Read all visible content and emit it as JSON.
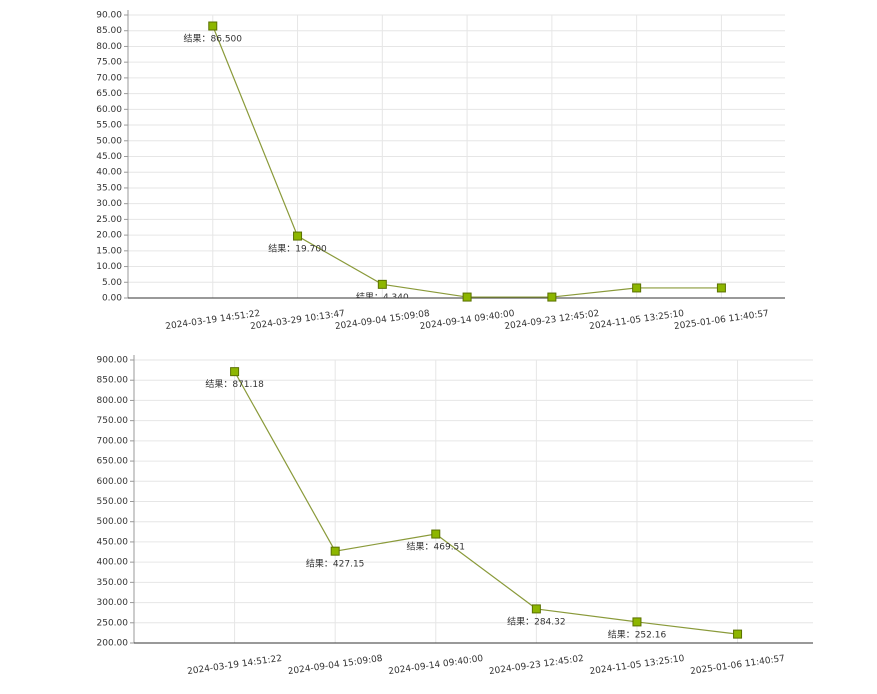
{
  "chart_data": [
    {
      "type": "line",
      "categories": [
        "2024-03-19 14:51:22",
        "2024-03-29 10:13:47",
        "2024-09-04 15:09:08",
        "2024-09-14 09:40:00",
        "2024-09-23 12:45:02",
        "2024-11-05 13:25:10",
        "2025-01-06 11:40:57"
      ],
      "series": [
        {
          "color": "#8a9a3a",
          "marker_color": "#8db600",
          "values": [
            86.5,
            19.7,
            4.34,
            0.3,
            0.3,
            3.2,
            3.2
          ],
          "value_labels": [
            "结果：86.500",
            "结果：19.700",
            "结果：4.340",
            null,
            null,
            null,
            null
          ]
        }
      ],
      "ylim": [
        0,
        90
      ],
      "yticks": [
        {
          "value": 0,
          "label": "0.00"
        },
        {
          "value": 5,
          "label": "5.00"
        },
        {
          "value": 10,
          "label": "10.00"
        },
        {
          "value": 15,
          "label": "15.00"
        },
        {
          "value": 20,
          "label": "20.00"
        },
        {
          "value": 25,
          "label": "25.00"
        },
        {
          "value": 30,
          "label": "30.00"
        },
        {
          "value": 35,
          "label": "35.00"
        },
        {
          "value": 40,
          "label": "40.00"
        },
        {
          "value": 45,
          "label": "45.00"
        },
        {
          "value": 50,
          "label": "50.00"
        },
        {
          "value": 55,
          "label": "55.00"
        },
        {
          "value": 60,
          "label": "60.00"
        },
        {
          "value": 65,
          "label": "65.00"
        },
        {
          "value": 70,
          "label": "70.00"
        },
        {
          "value": 75,
          "label": "75.00"
        },
        {
          "value": 80,
          "label": "80.00"
        },
        {
          "value": 85,
          "label": "85.00"
        },
        {
          "value": 90,
          "label": "90.00"
        }
      ],
      "grid": true
    },
    {
      "type": "line",
      "categories": [
        "2024-03-19 14:51:22",
        "2024-09-04 15:09:08",
        "2024-09-14 09:40:00",
        "2024-09-23 12:45:02",
        "2024-11-05 13:25:10",
        "2025-01-06 11:40:57"
      ],
      "series": [
        {
          "color": "#8a9a3a",
          "marker_color": "#8db600",
          "values": [
            871.18,
            427.15,
            469.51,
            284.32,
            252.16,
            222
          ],
          "value_labels": [
            "结果：871.18",
            "结果：427.15",
            "结果：469.51",
            "结果：284.32",
            "结果：252.16",
            null
          ]
        }
      ],
      "ylim": [
        200,
        900
      ],
      "yticks": [
        {
          "value": 200,
          "label": "200.00"
        },
        {
          "value": 250,
          "label": "250.00"
        },
        {
          "value": 300,
          "label": "300.00"
        },
        {
          "value": 350,
          "label": "350.00"
        },
        {
          "value": 400,
          "label": "400.00"
        },
        {
          "value": 450,
          "label": "450.00"
        },
        {
          "value": 500,
          "label": "500.00"
        },
        {
          "value": 550,
          "label": "550.00"
        },
        {
          "value": 600,
          "label": "600.00"
        },
        {
          "value": 650,
          "label": "650.00"
        },
        {
          "value": 700,
          "label": "700.00"
        },
        {
          "value": 750,
          "label": "750.00"
        },
        {
          "value": 800,
          "label": "800.00"
        },
        {
          "value": 850,
          "label": "850.00"
        },
        {
          "value": 900,
          "label": "900.00"
        }
      ],
      "grid": true
    }
  ]
}
